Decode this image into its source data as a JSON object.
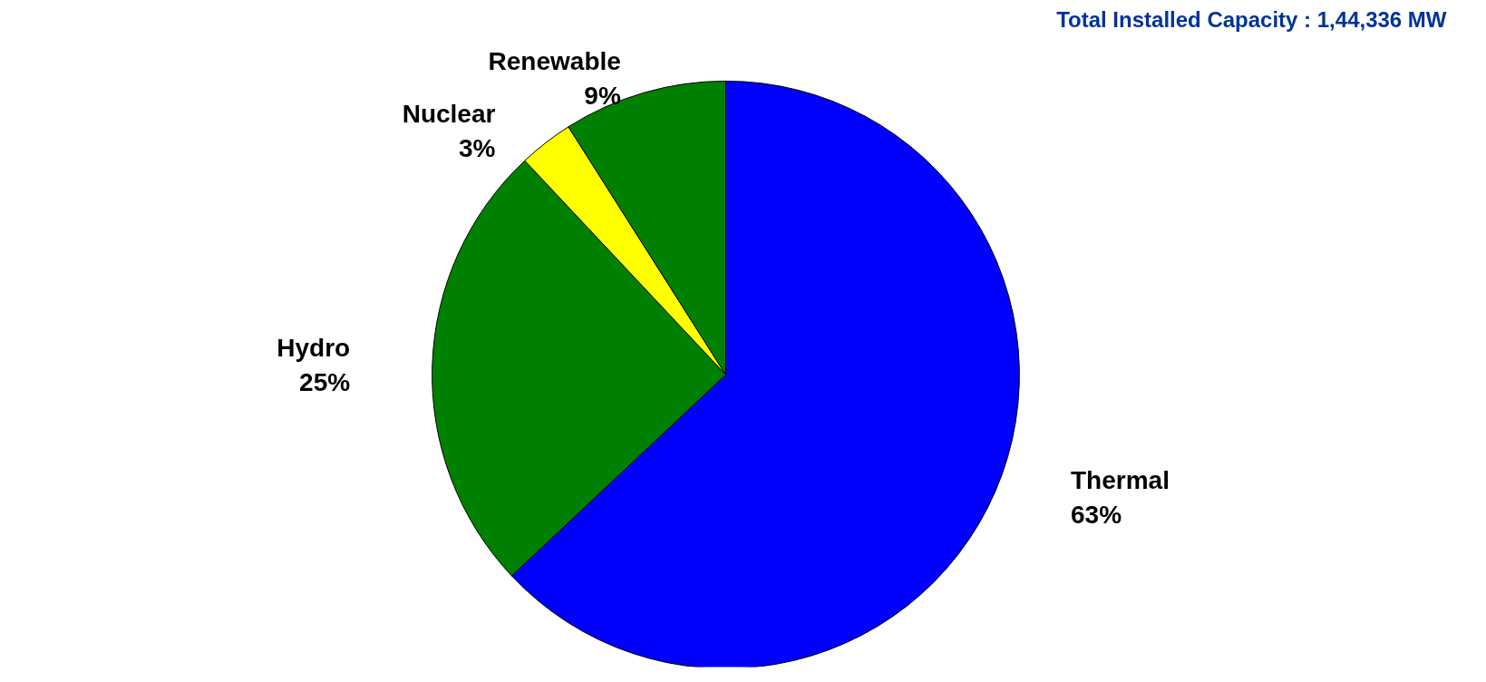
{
  "chart_data": {
    "type": "pie",
    "title": "Total Installed Capacity : 1,44,336 MW",
    "categories": [
      "Thermal",
      "Hydro",
      "Nuclear",
      "Renewable"
    ],
    "values": [
      63,
      25,
      3,
      9
    ],
    "colors": [
      "#0000ff",
      "#008000",
      "#ffff00",
      "#008000"
    ],
    "value_labels": [
      "63%",
      "25%",
      "3%",
      "9%"
    ]
  }
}
